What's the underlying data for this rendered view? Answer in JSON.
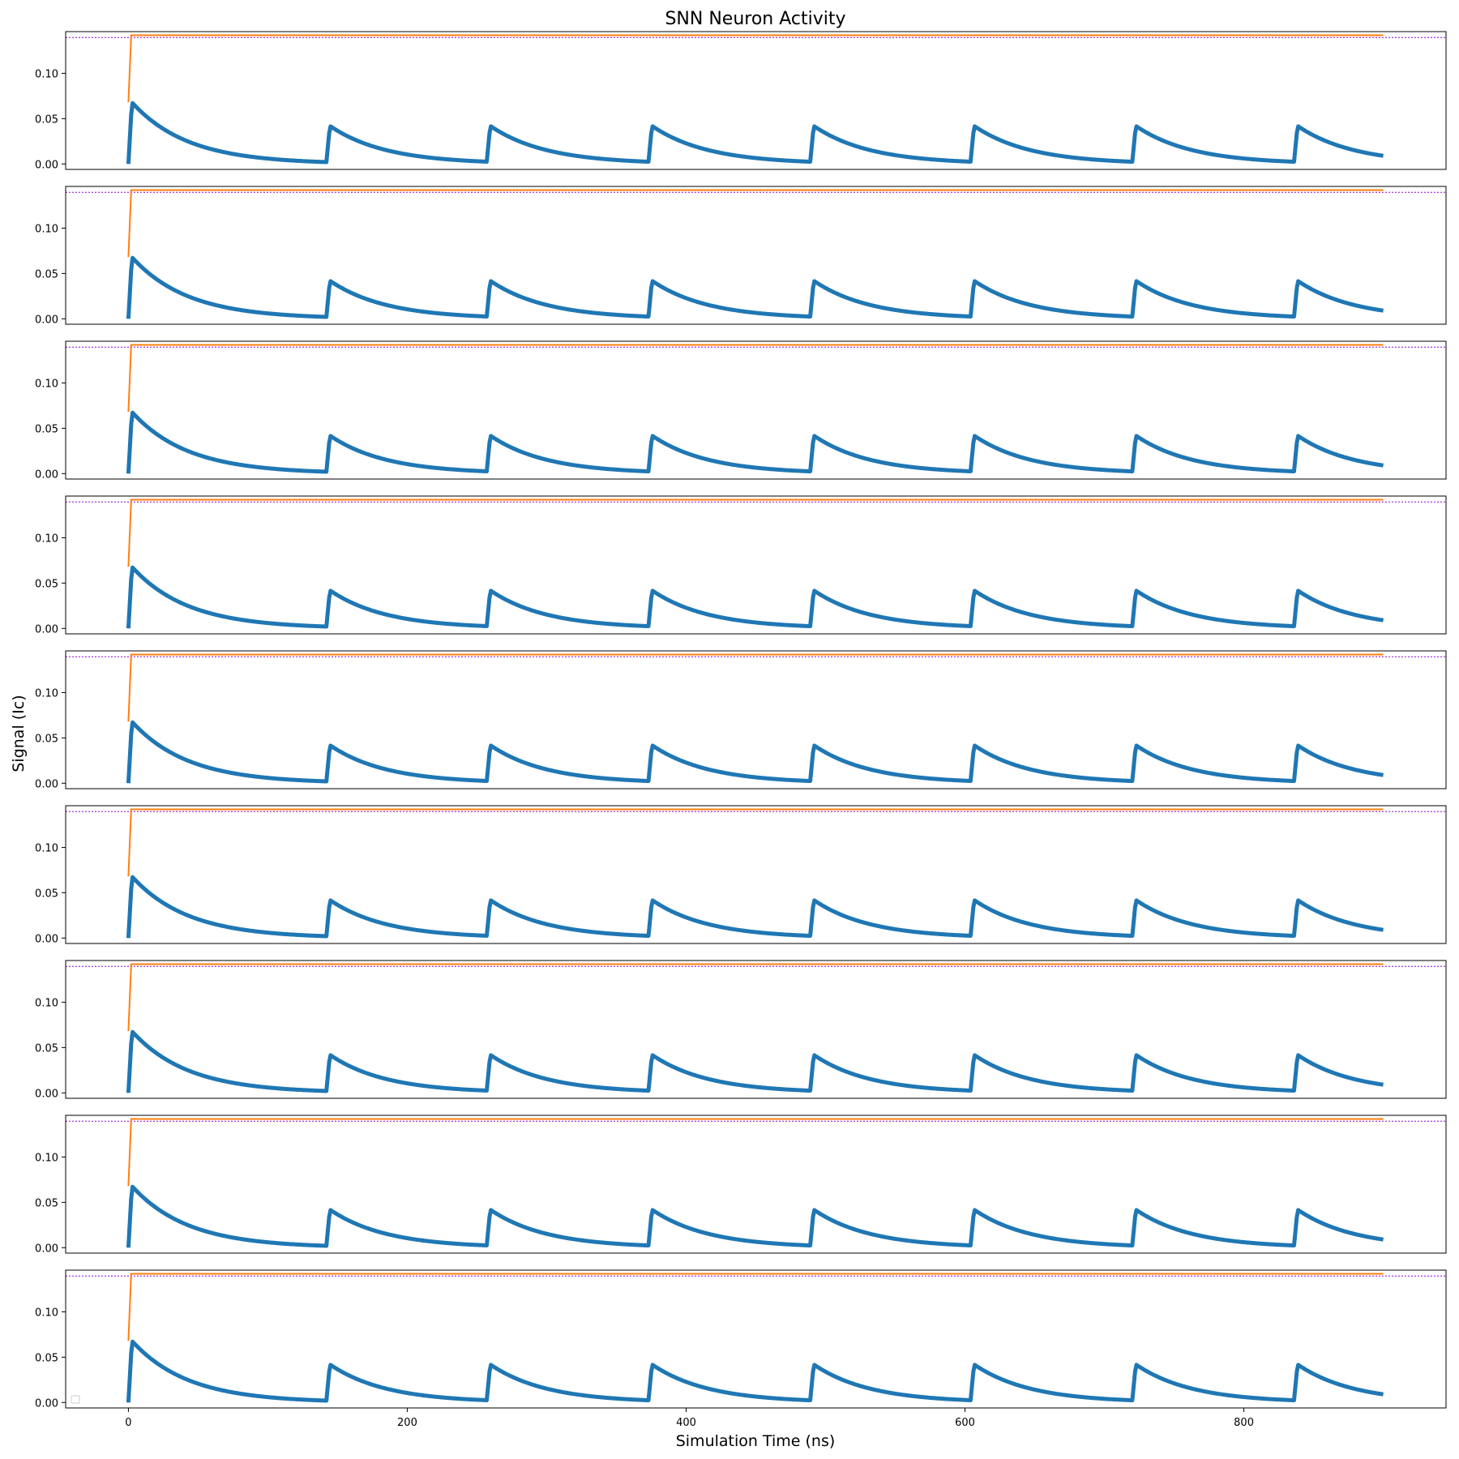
{
  "figure": {
    "title": "SNN Neuron Activity",
    "xlabel": "Simulation Time (ns)",
    "ylabel": "Signal (Ic)"
  },
  "colors": {
    "membrane": "#1f77b4",
    "orange_trace": "#ff7f0e",
    "threshold": "#9400d3",
    "axes": "#000000"
  },
  "chart_data": {
    "type": "line",
    "panel_count": 9,
    "x_tick_labels": [
      "0",
      "200",
      "400",
      "600",
      "800"
    ],
    "x_ticks": [
      0,
      200,
      400,
      600,
      800
    ],
    "y_tick_labels": [
      "0.00",
      "0.05",
      "0.10"
    ],
    "y_ticks": [
      0.0,
      0.05,
      0.1
    ],
    "xlim": [
      -45,
      945
    ],
    "ylim": [
      -0.006,
      0.146
    ],
    "grid": false,
    "legend": "empty legend box, lower-left of last panel",
    "panels_identical": true,
    "series": [
      {
        "role": "membrane",
        "start_x": 0,
        "end_x": 900,
        "first_peak": 0.068,
        "spike_peak": 0.042,
        "spike_floor": 0.005,
        "spike_times": [
          142,
          257,
          373,
          489,
          604,
          720,
          836
        ]
      },
      {
        "role": "orange_step",
        "start_x": 0,
        "end_x": 900,
        "start_y": 0.068,
        "level": 0.142
      },
      {
        "role": "threshold",
        "style": "dotted",
        "level": 0.1395
      }
    ]
  }
}
